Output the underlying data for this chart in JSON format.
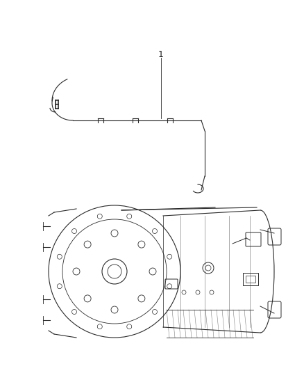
{
  "bg_color": "#ffffff",
  "line_color": "#2a2a2a",
  "label_color": "#1a1a1a",
  "part_number": "1",
  "title_text": "",
  "figsize": [
    4.38,
    5.33
  ],
  "dpi": 100
}
